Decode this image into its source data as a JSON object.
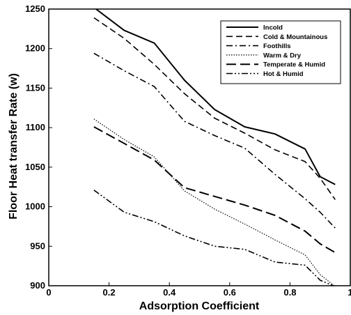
{
  "chart_data": {
    "type": "line",
    "title": "",
    "xlabel": "Adsorption Coefficient",
    "ylabel": "Floor Heat transfer Rate (w)",
    "xlim": [
      0,
      1
    ],
    "ylim": [
      900,
      1250
    ],
    "xticks": [
      0,
      0.2,
      0.4,
      0.6,
      0.8,
      1
    ],
    "xtick_labels": [
      "0",
      "0.2",
      "0.4",
      "0.6",
      "0.8",
      "1"
    ],
    "yticks": [
      900,
      950,
      1000,
      1050,
      1100,
      1150,
      1200,
      1250
    ],
    "ytick_labels": [
      "900",
      "950",
      "1000",
      "1050",
      "1100",
      "1150",
      "1200",
      "1250"
    ],
    "grid": false,
    "legend_position": "top-right",
    "series": [
      {
        "name": "Incold",
        "dash": "solid",
        "x": [
          0.15,
          0.25,
          0.35,
          0.45,
          0.55,
          0.65,
          0.75,
          0.85,
          0.9,
          0.95
        ],
        "y": [
          1252,
          1223,
          1207,
          1160,
          1123,
          1101,
          1092,
          1073,
          1038,
          1028
        ]
      },
      {
        "name": "Cold & Mountainous",
        "dash": "dashed",
        "x": [
          0.15,
          0.25,
          0.35,
          0.45,
          0.55,
          0.65,
          0.75,
          0.85,
          0.9,
          0.95
        ],
        "y": [
          1239,
          1213,
          1180,
          1143,
          1112,
          1093,
          1072,
          1057,
          1036,
          1009
        ]
      },
      {
        "name": "Foothills",
        "dash": "dashdot",
        "x": [
          0.15,
          0.25,
          0.35,
          0.45,
          0.55,
          0.65,
          0.75,
          0.85,
          0.9,
          0.95
        ],
        "y": [
          1194,
          1172,
          1152,
          1108,
          1090,
          1074,
          1041,
          1010,
          993,
          973
        ]
      },
      {
        "name": "Warm & Dry",
        "dash": "dotted",
        "x": [
          0.15,
          0.25,
          0.35,
          0.45,
          0.55,
          0.65,
          0.75,
          0.85,
          0.9,
          0.95
        ],
        "y": [
          1111,
          1085,
          1063,
          1020,
          997,
          978,
          958,
          939,
          914,
          899
        ]
      },
      {
        "name": "Temperate & Humid",
        "dash": "longdash",
        "x": [
          0.15,
          0.25,
          0.35,
          0.45,
          0.55,
          0.65,
          0.75,
          0.85,
          0.9,
          0.95
        ],
        "y": [
          1101,
          1080,
          1059,
          1024,
          1013,
          1002,
          989,
          969,
          953,
          942
        ]
      },
      {
        "name": "Hot & Humid",
        "dash": "dashdotdot",
        "x": [
          0.15,
          0.25,
          0.35,
          0.45,
          0.55,
          0.65,
          0.75,
          0.85,
          0.9,
          0.95
        ],
        "y": [
          1021,
          993,
          981,
          963,
          950,
          946,
          930,
          926,
          907,
          899
        ]
      }
    ]
  }
}
